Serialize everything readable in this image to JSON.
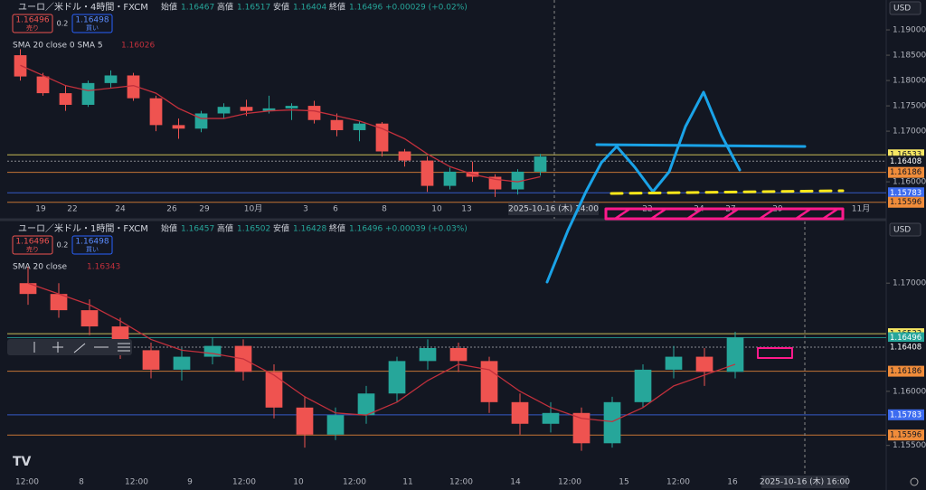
{
  "up_color": "#26a69a",
  "down_color": "#ef5350",
  "sma_color": "#c2303c",
  "panels": [
    {
      "symbol": "ユーロ／米ドル・4時間・FXCM",
      "quote": [
        [
          "始値",
          "1.16467"
        ],
        [
          "高値",
          "1.16517"
        ],
        [
          "安値",
          "1.16404"
        ],
        [
          "終値",
          "1.16496"
        ]
      ],
      "change": "+0.00029 (+0.02%)",
      "sell": {
        "price": "1.16496",
        "label": "売り"
      },
      "spread": "0.2",
      "buy": {
        "price": "1.16498",
        "label": "買い"
      },
      "indicator": "SMA 20 close 0 SMA 5",
      "indicator_value": "1.16026",
      "currency": "USD",
      "ylim": [
        1.1527,
        1.1959
      ],
      "yticks": [
        {
          "value": 1.19,
          "label": "1.19000"
        },
        {
          "value": 1.185,
          "label": "1.18500"
        },
        {
          "value": 1.18,
          "label": "1.18000"
        },
        {
          "value": 1.175,
          "label": "1.17500"
        },
        {
          "value": 1.17,
          "label": "1.17000"
        },
        {
          "value": 1.16,
          "label": "1.16000"
        }
      ],
      "levels": [
        {
          "price": 1.16533,
          "color": "#f5e663"
        },
        {
          "price": 1.16408,
          "color": "#ffffff"
        },
        {
          "price": 1.16186,
          "color": "#f08c3a"
        },
        {
          "price": 1.15783,
          "color": "#3d6cf0"
        },
        {
          "price": 1.15596,
          "color": "#f08c3a"
        }
      ],
      "time_labels": [
        "19",
        "22",
        "24",
        "26",
        "29",
        "10月",
        "3",
        "6",
        "8",
        "10",
        "13",
        "22",
        "24",
        "27",
        "29",
        "11月"
      ],
      "crosshair_time": "2025-10-16 (木)  14:00",
      "candles": [
        [
          1.185,
          1.1862,
          1.18,
          1.1808
        ],
        [
          1.1808,
          1.1815,
          1.177,
          1.1775
        ],
        [
          1.1775,
          1.179,
          1.174,
          1.1752
        ],
        [
          1.1752,
          1.18,
          1.1748,
          1.1795
        ],
        [
          1.1795,
          1.182,
          1.1785,
          1.181
        ],
        [
          1.181,
          1.1815,
          1.176,
          1.1765
        ],
        [
          1.1765,
          1.177,
          1.17,
          1.1712
        ],
        [
          1.1712,
          1.1725,
          1.1685,
          1.1705
        ],
        [
          1.1705,
          1.174,
          1.1698,
          1.1735
        ],
        [
          1.1735,
          1.1755,
          1.1725,
          1.1748
        ],
        [
          1.1748,
          1.1762,
          1.173,
          1.174
        ],
        [
          1.174,
          1.177,
          1.1735,
          1.1745
        ],
        [
          1.1745,
          1.1755,
          1.1722,
          1.175
        ],
        [
          1.175,
          1.176,
          1.1715,
          1.1722
        ],
        [
          1.1722,
          1.1735,
          1.169,
          1.1702
        ],
        [
          1.1702,
          1.172,
          1.168,
          1.1715
        ],
        [
          1.1715,
          1.1718,
          1.165,
          1.166
        ],
        [
          1.166,
          1.1665,
          1.163,
          1.1642
        ],
        [
          1.1642,
          1.165,
          1.158,
          1.1592
        ],
        [
          1.1592,
          1.1628,
          1.1585,
          1.162
        ],
        [
          1.162,
          1.164,
          1.16,
          1.161
        ],
        [
          1.161,
          1.1615,
          1.157,
          1.1585
        ],
        [
          1.1585,
          1.1625,
          1.1575,
          1.162
        ],
        [
          1.162,
          1.1655,
          1.1612,
          1.165
        ]
      ],
      "sma": [
        1.183,
        1.181,
        1.179,
        1.178,
        1.1785,
        1.179,
        1.1775,
        1.1745,
        1.1725,
        1.1725,
        1.1735,
        1.174,
        1.1742,
        1.174,
        1.173,
        1.172,
        1.1705,
        1.1685,
        1.1655,
        1.163,
        1.1615,
        1.1605,
        1.16,
        1.161
      ]
    },
    {
      "symbol": "ユーロ／米ドル・1時間・FXCM",
      "quote": [
        [
          "始値",
          "1.16457"
        ],
        [
          "高値",
          "1.16502"
        ],
        [
          "安値",
          "1.16428"
        ],
        [
          "終値",
          "1.16496"
        ]
      ],
      "change": "+0.00039 (+0.03%)",
      "sell": {
        "price": "1.16496",
        "label": "売り"
      },
      "spread": "0.2",
      "buy": {
        "price": "1.16498",
        "label": "買い"
      },
      "indicator": "SMA 20 close",
      "indicator_value": "1.16343",
      "currency": "USD",
      "ylim": [
        1.1523,
        1.1757
      ],
      "yticks": [
        {
          "value": 1.17,
          "label": "1.17000"
        },
        {
          "value": 1.16,
          "label": "1.16000"
        },
        {
          "value": 1.155,
          "label": "1.15500"
        }
      ],
      "levels": [
        {
          "price": 1.16533,
          "color": "#f5e663"
        },
        {
          "price": 1.16496,
          "color": "#26a69a"
        },
        {
          "price": 1.16408,
          "color": "#ffffff"
        },
        {
          "price": 1.16186,
          "color": "#f08c3a"
        },
        {
          "price": 1.15783,
          "color": "#3d6cf0"
        },
        {
          "price": 1.15596,
          "color": "#f08c3a"
        }
      ],
      "time_labels": [
        "12:00",
        "8",
        "12:00",
        "9",
        "12:00",
        "10",
        "12:00",
        "11",
        "12:00",
        "14",
        "12:00",
        "15",
        "12:00",
        "16"
      ],
      "crosshair_time": "2025-10-16 (木)  16:00",
      "candles": [
        [
          1.17,
          1.1715,
          1.168,
          1.169
        ],
        [
          1.169,
          1.17,
          1.1668,
          1.1675
        ],
        [
          1.1675,
          1.1685,
          1.1652,
          1.166
        ],
        [
          1.166,
          1.1668,
          1.163,
          1.1638
        ],
        [
          1.1638,
          1.1645,
          1.1612,
          1.162
        ],
        [
          1.162,
          1.164,
          1.161,
          1.1632
        ],
        [
          1.1632,
          1.165,
          1.1625,
          1.1642
        ],
        [
          1.1642,
          1.1648,
          1.161,
          1.1618
        ],
        [
          1.1618,
          1.1625,
          1.1575,
          1.1585
        ],
        [
          1.1585,
          1.1595,
          1.1548,
          1.156
        ],
        [
          1.156,
          1.1585,
          1.1555,
          1.1578
        ],
        [
          1.1578,
          1.1605,
          1.157,
          1.1598
        ],
        [
          1.1598,
          1.1632,
          1.159,
          1.1628
        ],
        [
          1.1628,
          1.1648,
          1.162,
          1.164
        ],
        [
          1.164,
          1.1645,
          1.1618,
          1.1628
        ],
        [
          1.1628,
          1.1632,
          1.158,
          1.159
        ],
        [
          1.159,
          1.1598,
          1.156,
          1.157
        ],
        [
          1.157,
          1.159,
          1.1562,
          1.158
        ],
        [
          1.158,
          1.1585,
          1.1545,
          1.1552
        ],
        [
          1.1552,
          1.1595,
          1.1548,
          1.159
        ],
        [
          1.159,
          1.1625,
          1.1585,
          1.162
        ],
        [
          1.162,
          1.1642,
          1.1612,
          1.1632
        ],
        [
          1.1632,
          1.164,
          1.1605,
          1.1618
        ],
        [
          1.1618,
          1.1655,
          1.1612,
          1.165
        ]
      ],
      "sma": [
        1.17,
        1.169,
        1.168,
        1.1665,
        1.1648,
        1.1638,
        1.1635,
        1.163,
        1.1615,
        1.1595,
        1.158,
        1.1578,
        1.159,
        1.161,
        1.1625,
        1.162,
        1.16,
        1.1585,
        1.1575,
        1.1572,
        1.1585,
        1.1605,
        1.1615,
        1.1625
      ]
    }
  ]
}
